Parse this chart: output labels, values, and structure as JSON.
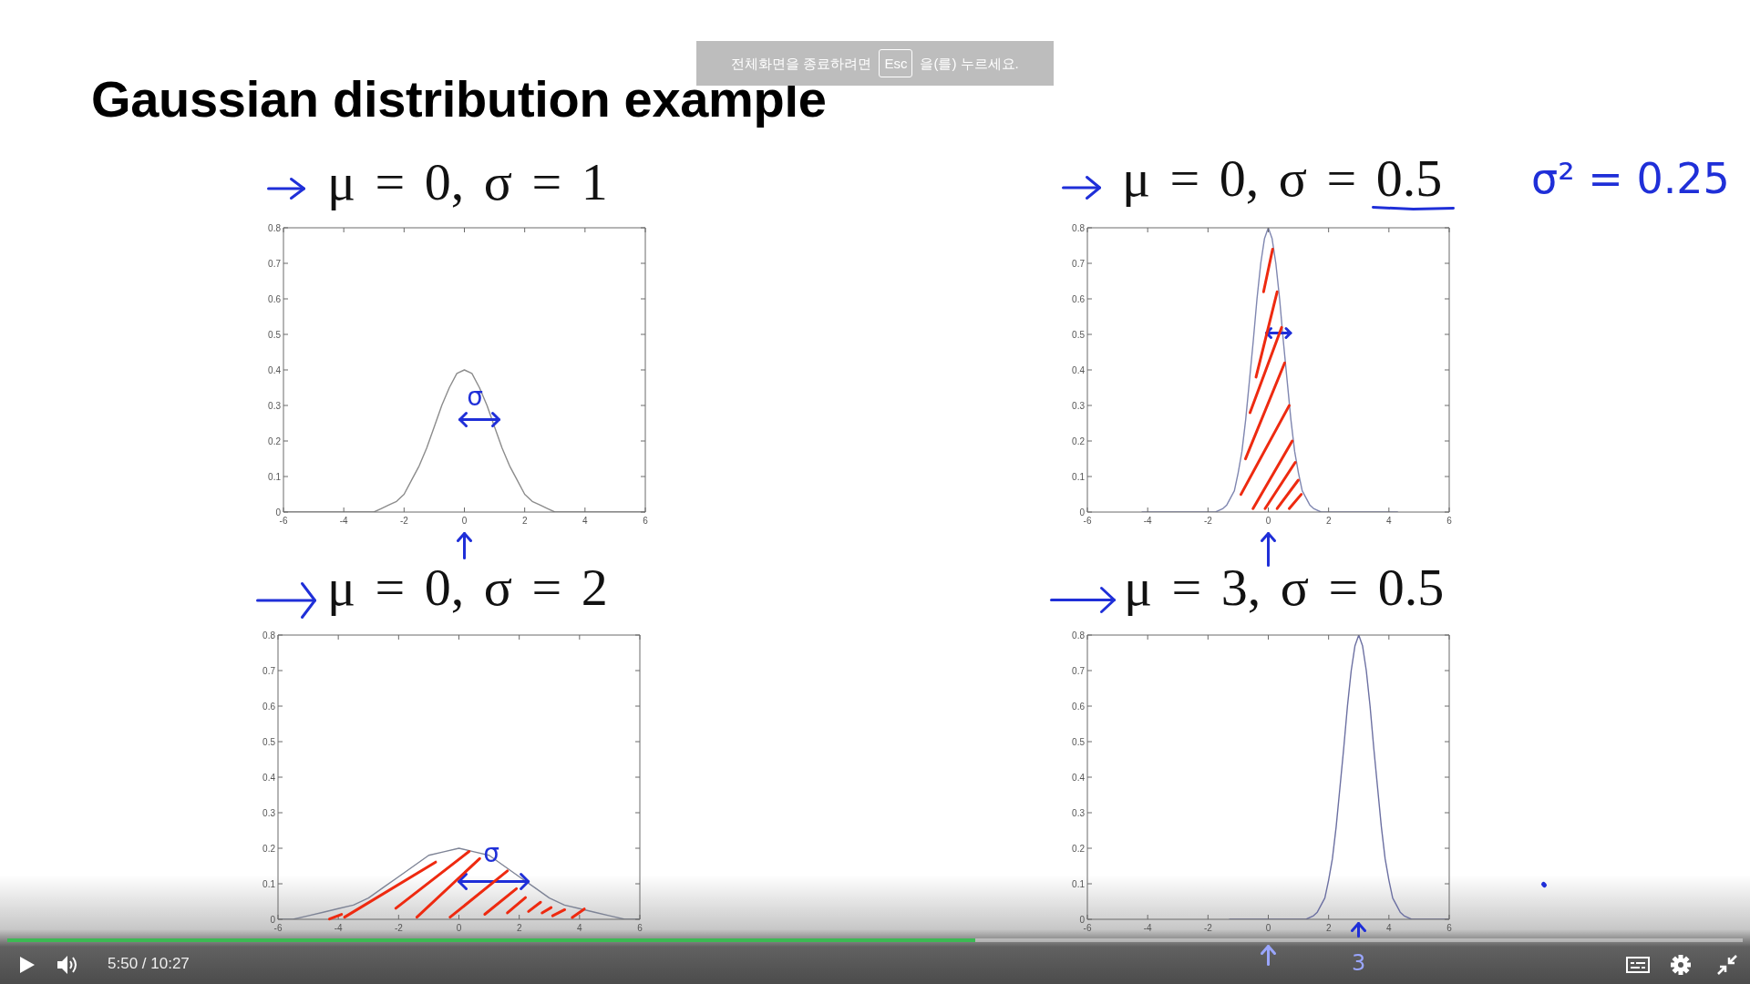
{
  "chart_data": [
    {
      "type": "other",
      "title": "Gaussian distribution example",
      "annotations": [
        "전체화면을 종료하려면",
        "Esc",
        "을(를) 누르세요.",
        "5:50 / 10:27"
      ]
    },
    {
      "type": "line",
      "title": "μ = 0, σ = 1",
      "x": [
        -6,
        -5,
        -4,
        -3.75,
        -3.5,
        -3.25,
        -3,
        -2.75,
        -2.5,
        -2.25,
        -2,
        -1.75,
        -1.5,
        -1.25,
        -1,
        -0.75,
        -0.5,
        -0.25,
        0,
        0.25,
        0.5,
        0.75,
        1,
        1.25,
        1.5,
        1.75,
        2,
        2.25,
        2.5,
        2.75,
        3,
        3.25,
        3.5,
        3.75,
        4,
        5,
        6
      ],
      "values": [
        0,
        0,
        0,
        0,
        0,
        0,
        0,
        0.01,
        0.02,
        0.03,
        0.05,
        0.09,
        0.13,
        0.18,
        0.24,
        0.3,
        0.35,
        0.39,
        0.4,
        0.39,
        0.35,
        0.3,
        0.24,
        0.18,
        0.13,
        0.09,
        0.05,
        0.03,
        0.02,
        0.01,
        0,
        0,
        0,
        0,
        0,
        0,
        0
      ],
      "color": "#8c8c8c",
      "xlim": [
        -6,
        6
      ],
      "xticks": [
        -6,
        -4,
        -2,
        0,
        2,
        4,
        6
      ],
      "ylim": [
        0,
        0.8
      ],
      "yticks": [
        0,
        0.1,
        0.2,
        0.3,
        0.4,
        0.5,
        0.6,
        0.7,
        0.8
      ],
      "annotations": [
        "σ"
      ]
    },
    {
      "type": "line",
      "title": "μ = 0, σ = 0.5",
      "x": [
        -4.2,
        -3,
        -2,
        -1.75,
        -1.5,
        -1.375,
        -1.25,
        -1.125,
        -1,
        -0.875,
        -0.75,
        -0.625,
        -0.5,
        -0.375,
        -0.25,
        -0.125,
        0,
        0.125,
        0.25,
        0.375,
        0.5,
        0.625,
        0.75,
        0.875,
        1,
        1.125,
        1.25,
        1.375,
        1.5,
        1.75,
        2,
        3,
        4.3
      ],
      "values": [
        0,
        0,
        0,
        0,
        0.01,
        0.02,
        0.04,
        0.06,
        0.11,
        0.17,
        0.26,
        0.37,
        0.48,
        0.6,
        0.7,
        0.77,
        0.8,
        0.77,
        0.7,
        0.6,
        0.48,
        0.37,
        0.26,
        0.17,
        0.11,
        0.06,
        0.04,
        0.02,
        0.01,
        0,
        0,
        0,
        0
      ],
      "color": "#7f86b0",
      "xlim": [
        -6,
        6
      ],
      "xticks": [
        -6,
        -4,
        -2,
        0,
        2,
        4,
        6
      ],
      "ylim": [
        0,
        0.8
      ],
      "yticks": [
        0,
        0.1,
        0.2,
        0.3,
        0.4,
        0.5,
        0.6,
        0.7,
        0.8
      ],
      "annotations": [
        "σ² = 0.25"
      ]
    },
    {
      "type": "line",
      "title": "μ = 0, σ = 2",
      "x": [
        -6,
        -5.5,
        -5,
        -4.5,
        -4,
        -3.5,
        -3,
        -2.5,
        -2,
        -1.5,
        -1,
        -0.5,
        0,
        0.5,
        1,
        1.5,
        2,
        2.5,
        3,
        3.5,
        4,
        4.5,
        5,
        5.5,
        6
      ],
      "values": [
        0,
        0,
        0.01,
        0.02,
        0.03,
        0.04,
        0.06,
        0.09,
        0.12,
        0.15,
        0.18,
        0.19,
        0.2,
        0.19,
        0.18,
        0.15,
        0.12,
        0.09,
        0.06,
        0.04,
        0.03,
        0.02,
        0.01,
        0,
        0
      ],
      "color": "#7e8496",
      "xlim": [
        -6,
        6
      ],
      "xticks": [
        -6,
        -4,
        -2,
        0,
        2,
        4,
        6
      ],
      "ylim": [
        0,
        0.8
      ],
      "yticks": [
        0,
        0.1,
        0.2,
        0.3,
        0.4,
        0.5,
        0.6,
        0.7,
        0.8
      ],
      "annotations": [
        "σ"
      ]
    },
    {
      "type": "line",
      "title": "μ = 3, σ = 0.5",
      "x": [
        -1.3,
        0,
        1,
        1.25,
        1.5,
        1.625,
        1.75,
        1.875,
        2,
        2.125,
        2.25,
        2.375,
        2.5,
        2.625,
        2.75,
        2.875,
        3,
        3.125,
        3.25,
        3.375,
        3.5,
        3.625,
        3.75,
        3.875,
        4,
        4.125,
        4.25,
        4.375,
        4.5,
        4.75,
        5,
        6
      ],
      "values": [
        0,
        0,
        0,
        0,
        0.01,
        0.02,
        0.04,
        0.06,
        0.11,
        0.17,
        0.26,
        0.37,
        0.48,
        0.6,
        0.7,
        0.77,
        0.8,
        0.77,
        0.7,
        0.6,
        0.48,
        0.37,
        0.26,
        0.17,
        0.11,
        0.06,
        0.04,
        0.02,
        0.01,
        0,
        0,
        0
      ],
      "color": "#6c70a2",
      "xlim": [
        -6,
        6
      ],
      "xticks": [
        -6,
        -4,
        -2,
        0,
        2,
        4,
        6
      ],
      "ylim": [
        0,
        0.8
      ],
      "yticks": [
        0,
        0.1,
        0.2,
        0.3,
        0.4,
        0.5,
        0.6,
        0.7,
        0.8
      ],
      "annotations": [
        {
          "text": "3",
          "x": 3
        }
      ]
    }
  ]
}
